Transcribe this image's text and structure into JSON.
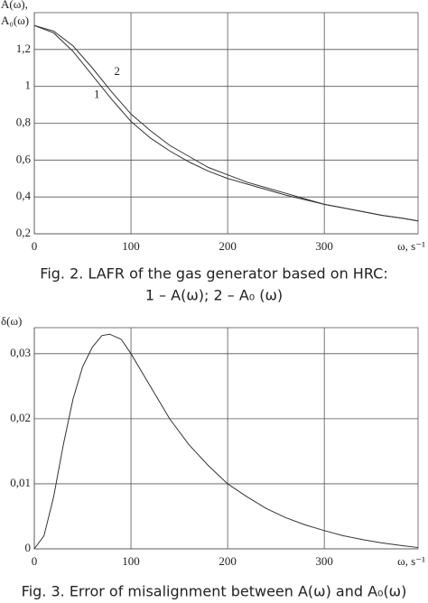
{
  "chart_data": [
    {
      "type": "line",
      "ylabel": [
        "A(ω),",
        "A₀(ω)"
      ],
      "xlabel": "ω, s⁻¹",
      "caption": [
        "Fig. 2. LAFR of the gas generator based on HRC:",
        "1 – A(ω); 2 – A₀ (ω)"
      ],
      "x": [
        0,
        20,
        40,
        60,
        80,
        100,
        120,
        140,
        160,
        180,
        200,
        220,
        240,
        260,
        280,
        300,
        320,
        340,
        360,
        380,
        397
      ],
      "series": [
        {
          "name": "1",
          "color": "#333333",
          "values": [
            1.33,
            1.29,
            1.19,
            1.06,
            0.93,
            0.81,
            0.72,
            0.65,
            0.59,
            0.54,
            0.5,
            0.47,
            0.44,
            0.41,
            0.385,
            0.36,
            0.34,
            0.32,
            0.3,
            0.285,
            0.27
          ]
        },
        {
          "name": "2",
          "color": "#333333",
          "values": [
            1.33,
            1.3,
            1.22,
            1.1,
            0.97,
            0.85,
            0.76,
            0.68,
            0.62,
            0.56,
            0.52,
            0.48,
            0.45,
            0.42,
            0.39,
            0.36,
            0.34,
            0.32,
            0.3,
            0.285,
            0.27
          ]
        }
      ],
      "xlim": [
        0,
        397
      ],
      "xticks": [
        0,
        100,
        200,
        300
      ],
      "ylim": [
        0.2,
        1.4
      ],
      "yticks": [
        {
          "value": 0.2,
          "label": "0,2"
        },
        {
          "value": 0.4,
          "label": "0,4"
        },
        {
          "value": 0.6,
          "label": "0,6"
        },
        {
          "value": 0.8,
          "label": "0,8"
        },
        1,
        {
          "value": 1.2,
          "label": "1,2"
        }
      ],
      "grid": true
    },
    {
      "type": "line",
      "ylabel": [
        "δ(ω)"
      ],
      "xlabel": "ω, s⁻¹",
      "caption": [
        "Fig. 3. Error of misalignment between A(ω) and A₀(ω)"
      ],
      "x": [
        0,
        10,
        20,
        30,
        40,
        50,
        60,
        70,
        78,
        90,
        100,
        120,
        140,
        160,
        180,
        200,
        220,
        240,
        260,
        280,
        300,
        320,
        340,
        360,
        380,
        397
      ],
      "color": "#333333",
      "values": [
        0,
        0.002,
        0.008,
        0.016,
        0.023,
        0.028,
        0.031,
        0.0328,
        0.033,
        0.0322,
        0.03,
        0.025,
        0.02,
        0.016,
        0.0128,
        0.01,
        0.008,
        0.0062,
        0.0048,
        0.0037,
        0.0028,
        0.002,
        0.0014,
        0.0009,
        0.0005,
        0.0002
      ],
      "xlim": [
        0,
        397
      ],
      "xticks": [
        0,
        100,
        200,
        300
      ],
      "ylim": [
        0,
        0.034
      ],
      "yticks": [
        0,
        {
          "value": 0.01,
          "label": "0,01"
        },
        {
          "value": 0.02,
          "label": "0,02"
        },
        {
          "value": 0.03,
          "label": "0,03"
        }
      ],
      "grid": true
    }
  ]
}
